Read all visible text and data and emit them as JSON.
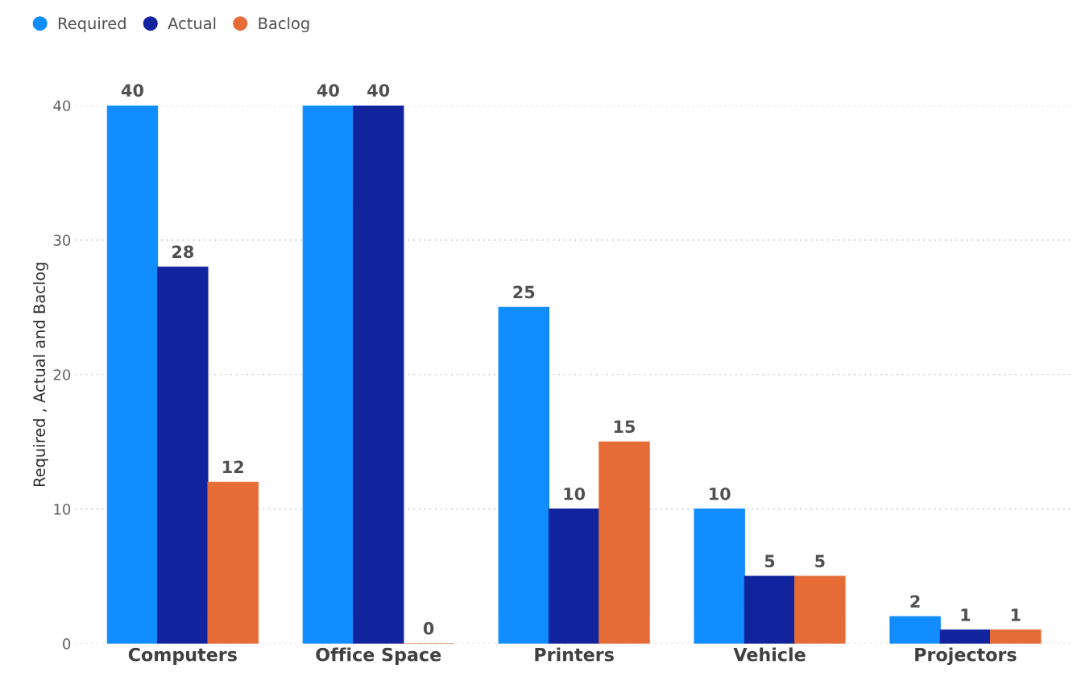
{
  "chart_data": {
    "type": "bar",
    "ylabel": "Required , Actual and Baclog",
    "categories": [
      "Computers",
      "Office Space",
      "Printers",
      "Vehicle",
      "Projectors"
    ],
    "series": [
      {
        "name": "Required",
        "color": "#118dff",
        "values": [
          40,
          40,
          25,
          10,
          2
        ]
      },
      {
        "name": "Actual",
        "color": "#12239e",
        "values": [
          28,
          40,
          10,
          5,
          1
        ]
      },
      {
        "name": "Baclog",
        "color": "#e66c37",
        "values": [
          12,
          0,
          15,
          5,
          1
        ]
      }
    ],
    "ylim": [
      0,
      40
    ],
    "yticks": [
      0,
      10,
      20,
      30,
      40
    ],
    "grid": "y",
    "legend": "top left",
    "data_labels": true
  }
}
